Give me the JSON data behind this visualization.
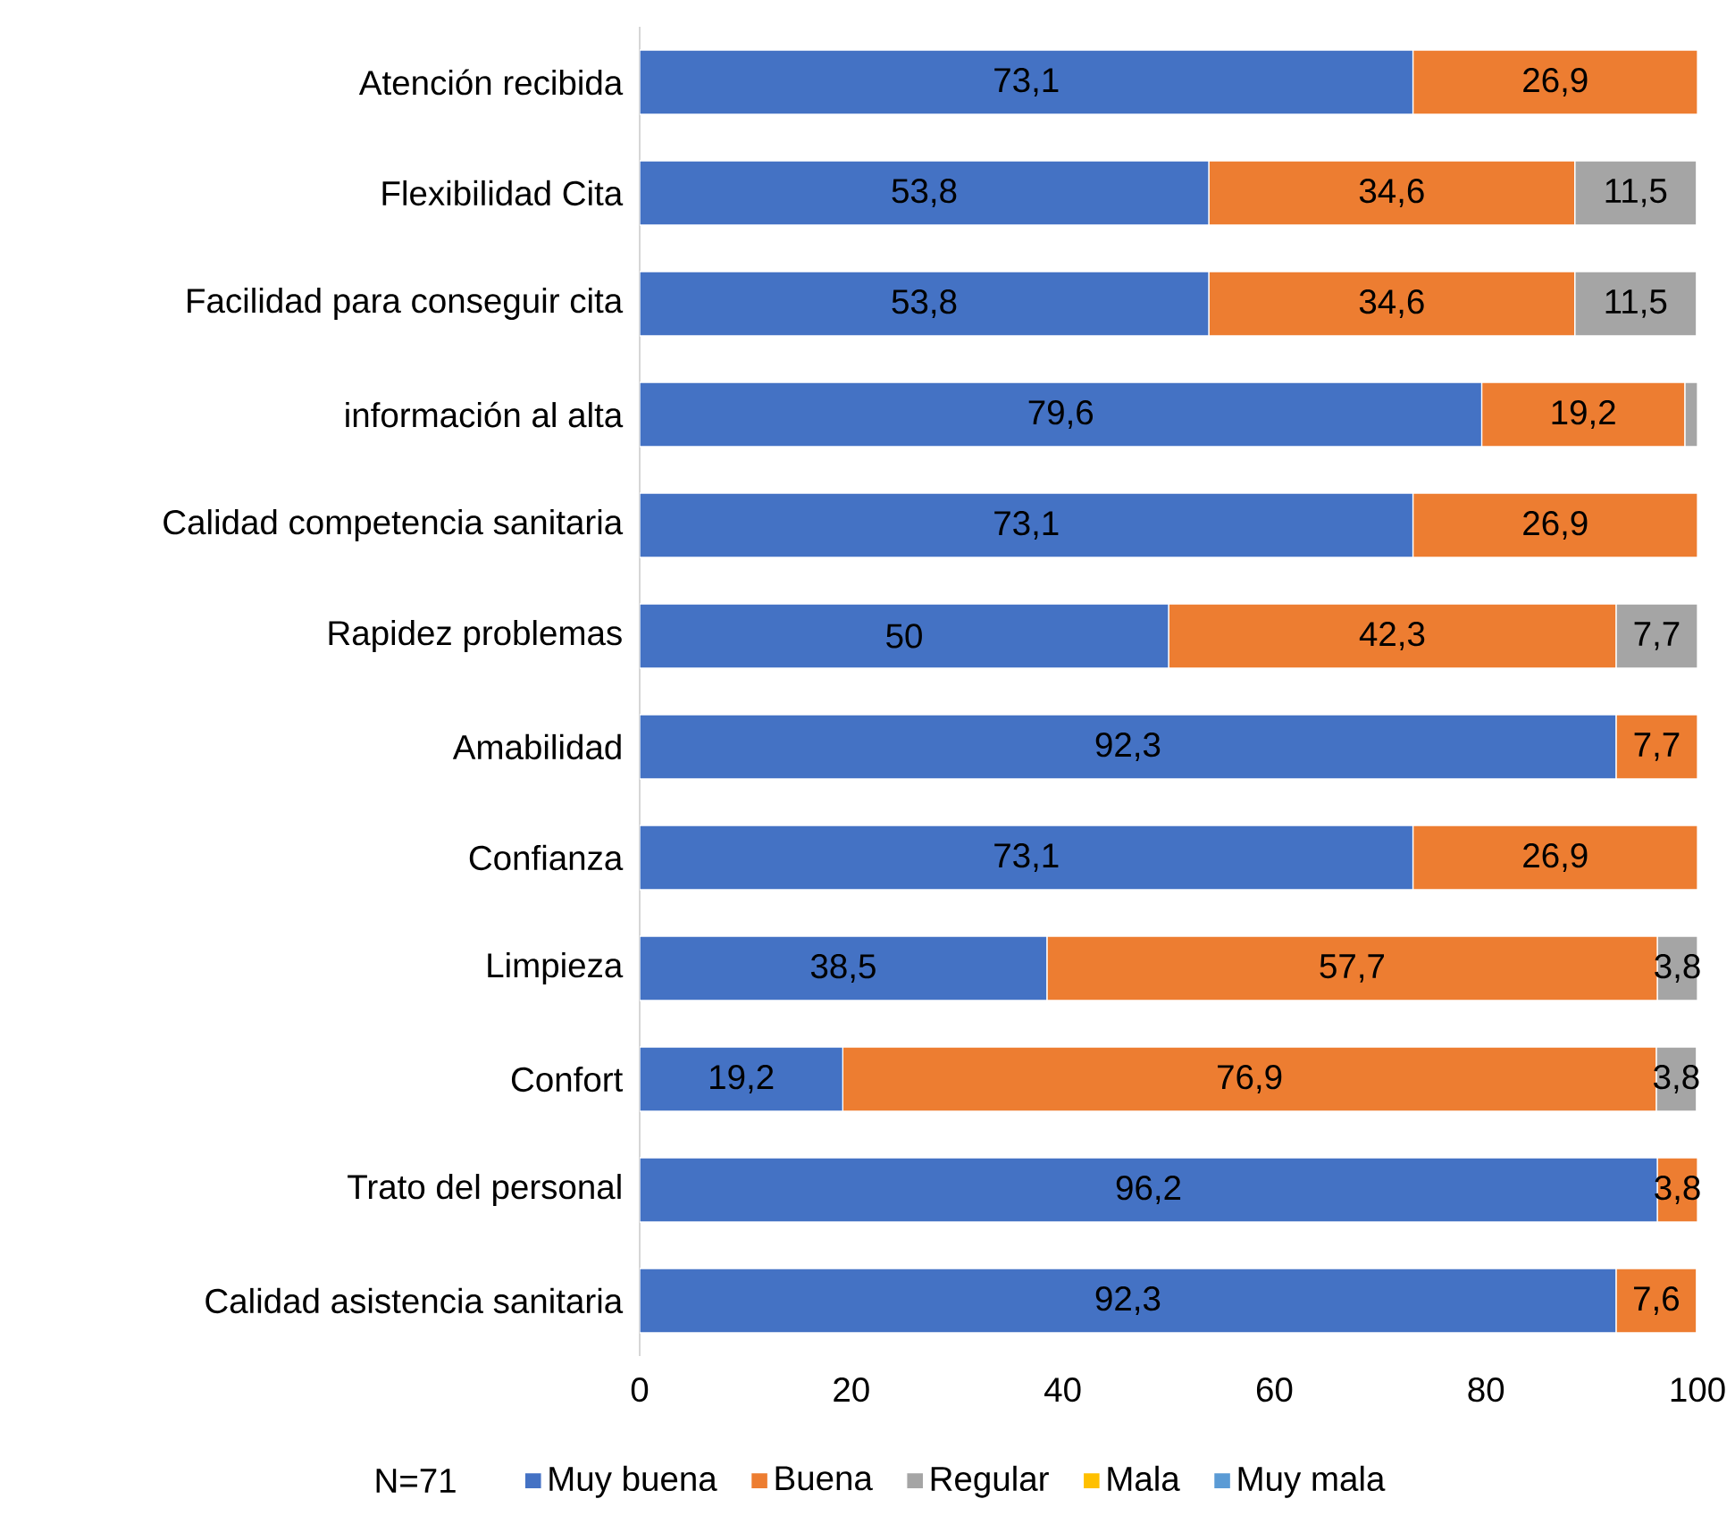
{
  "chart_data": {
    "type": "bar",
    "orientation": "horizontal",
    "stacked": true,
    "categories": [
      "Atención recibida",
      "Flexibilidad Cita",
      "Facilidad para conseguir cita",
      "información al alta",
      "Calidad competencia sanitaria",
      "Rapidez problemas",
      "Amabilidad",
      "Confianza",
      "Limpieza",
      "Confort",
      "Trato del personal",
      "Calidad asistencia sanitaria"
    ],
    "series": [
      {
        "name": "Muy buena",
        "color": "#4472c4",
        "values": [
          73.1,
          53.8,
          53.8,
          79.6,
          73.1,
          50,
          92.3,
          73.1,
          38.5,
          19.2,
          96.2,
          92.3
        ],
        "value_labels": [
          "73,1",
          "53,8",
          "53,8",
          "79,6",
          "73,1",
          "50",
          "92,3",
          "73,1",
          "38,5",
          "19,2",
          "96,2",
          "92,3"
        ]
      },
      {
        "name": "Buena",
        "color": "#ed7d31",
        "values": [
          26.9,
          34.6,
          34.6,
          19.2,
          26.9,
          42.3,
          7.7,
          26.9,
          57.7,
          76.9,
          3.8,
          7.6
        ],
        "value_labels": [
          "26,9",
          "34,6",
          "34,6",
          "19,2",
          "26,9",
          "42,3",
          "7,7",
          "26,9",
          "57,7",
          "76,9",
          "3,8",
          "7,6"
        ]
      },
      {
        "name": "Regular",
        "color": "#a5a5a5",
        "values": [
          0,
          11.5,
          11.5,
          1.2,
          0,
          7.7,
          0,
          0,
          3.8,
          3.8,
          0,
          0
        ],
        "value_labels": [
          null,
          "11,5",
          "11,5",
          null,
          null,
          "7,7",
          null,
          null,
          "3,8",
          "3,8",
          null,
          null
        ]
      },
      {
        "name": "Mala",
        "color": "#ffc000",
        "values": [
          0,
          0,
          0,
          0,
          0,
          0,
          0,
          0,
          0,
          0,
          0,
          0
        ]
      },
      {
        "name": "Muy mala",
        "color": "#5b9bd5",
        "values": [
          0,
          0,
          0,
          0,
          0,
          0,
          0,
          0,
          0,
          0,
          0,
          0
        ]
      }
    ],
    "xlim": [
      0,
      100
    ],
    "xticks": [
      0,
      20,
      40,
      60,
      80,
      100
    ],
    "legend": "bottom",
    "grid": false,
    "annotations": [
      "N=71"
    ]
  }
}
